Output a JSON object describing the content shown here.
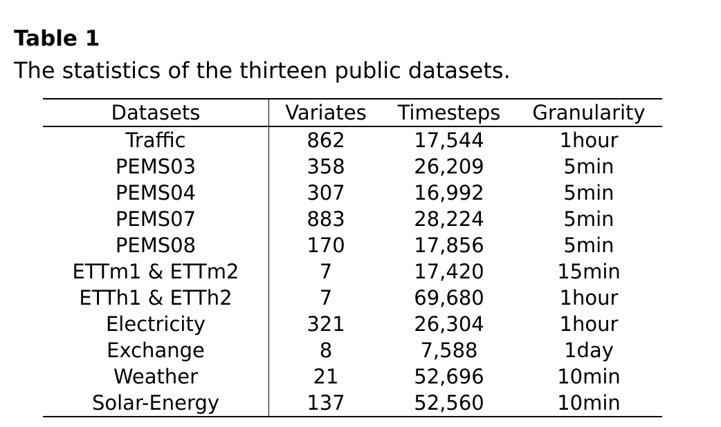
{
  "caption": {
    "label": "Table 1",
    "text": "The statistics of the thirteen public datasets."
  },
  "table": {
    "headers": [
      "Datasets",
      "Variates",
      "Timesteps",
      "Granularity"
    ],
    "rows": [
      [
        "Traffic",
        "862",
        "17,544",
        "1hour"
      ],
      [
        "PEMS03",
        "358",
        "26,209",
        "5min"
      ],
      [
        "PEMS04",
        "307",
        "16,992",
        "5min"
      ],
      [
        "PEMS07",
        "883",
        "28,224",
        "5min"
      ],
      [
        "PEMS08",
        "170",
        "17,856",
        "5min"
      ],
      [
        "ETTm1 & ETTm2",
        "7",
        "17,420",
        "15min"
      ],
      [
        "ETTh1 & ETTh2",
        "7",
        "69,680",
        "1hour"
      ],
      [
        "Electricity",
        "321",
        "26,304",
        "1hour"
      ],
      [
        "Exchange",
        "8",
        "7,588",
        "1day"
      ],
      [
        "Weather",
        "21",
        "52,696",
        "10min"
      ],
      [
        "Solar-Energy",
        "137",
        "52,560",
        "10min"
      ]
    ]
  }
}
